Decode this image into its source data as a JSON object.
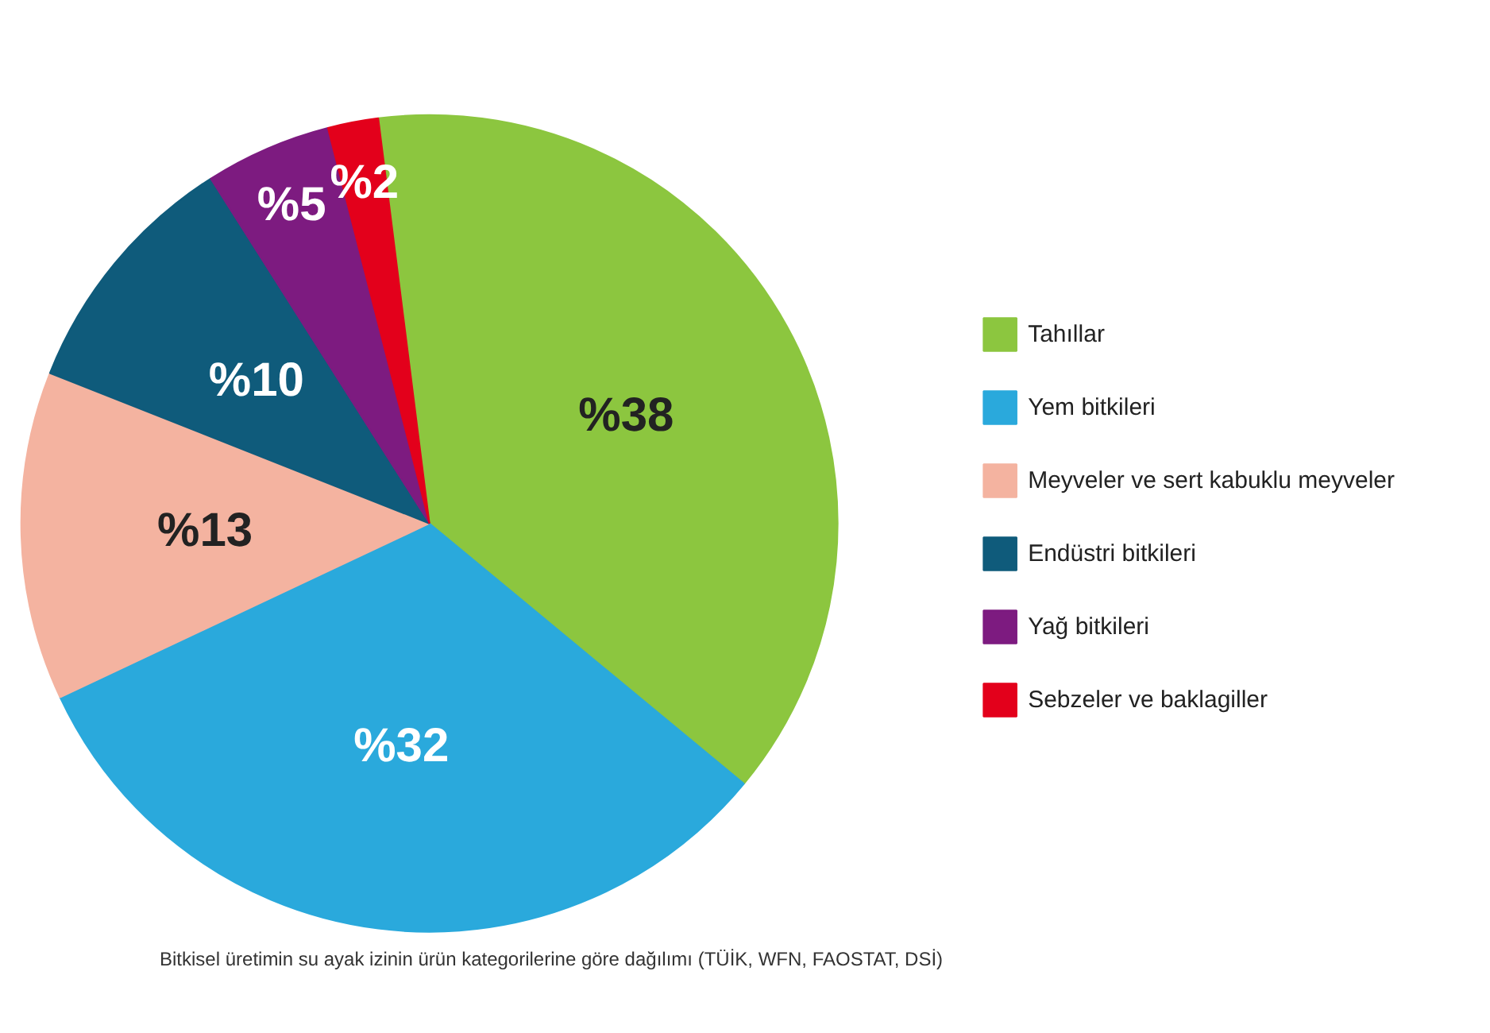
{
  "chart_data": {
    "type": "pie",
    "categories": [
      "Tahıllar",
      "Yem bitkileri",
      "Meyveler ve sert kabuklu meyveler",
      "Endüstri bitkileri",
      "Yağ bitkileri",
      "Sebzeler ve baklagiller"
    ],
    "values": [
      38,
      32,
      13,
      10,
      5,
      2
    ],
    "colors": [
      "#8cc63f",
      "#2aa9dc",
      "#f4b3a0",
      "#0f5b7b",
      "#7d1b80",
      "#e3001b"
    ],
    "value_labels": [
      "%38",
      "%32",
      "%13",
      "%10",
      "%5",
      "%2"
    ],
    "legend": "right",
    "annotations": [
      "Bitkisel üretimin su ayak izinin ürün kategorilerine göre dağılımı (TÜİK, WFN, FAOSTAT, DSİ)"
    ]
  }
}
